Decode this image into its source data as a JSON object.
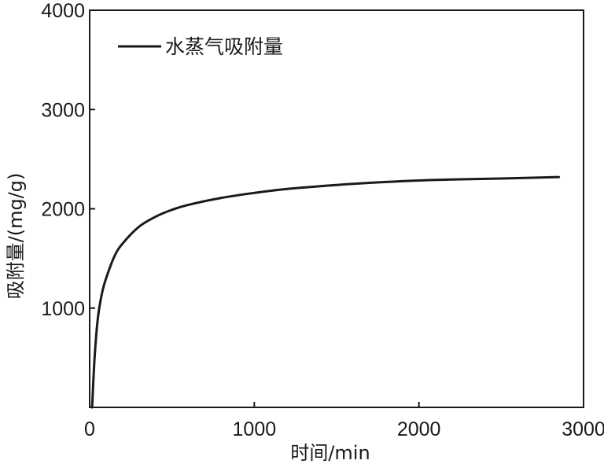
{
  "chart_data": {
    "type": "line",
    "title": "",
    "xlabel": "时间/min",
    "ylabel": "吸附量/(mg/g)",
    "xlim": [
      0,
      3000
    ],
    "ylim": [
      0,
      4000
    ],
    "x_ticks": [
      0,
      1000,
      2000,
      3000
    ],
    "x_tick_labels": [
      "0",
      "1000",
      "2000",
      "3000"
    ],
    "y_ticks": [
      1000,
      2000,
      3000,
      4000
    ],
    "y_tick_labels": [
      "1000",
      "2000",
      "3000",
      "4000"
    ],
    "grid": false,
    "legend_position": "top-left",
    "series": [
      {
        "name": "水蒸气吸附量",
        "color": "#1a1a1a",
        "x": [
          15,
          30,
          50,
          75,
          100,
          150,
          200,
          300,
          400,
          500,
          600,
          800,
          1000,
          1200,
          1500,
          1800,
          2000,
          2200,
          2500,
          2850
        ],
        "y": [
          0,
          500,
          900,
          1150,
          1300,
          1520,
          1650,
          1820,
          1920,
          1990,
          2040,
          2110,
          2160,
          2200,
          2240,
          2270,
          2285,
          2295,
          2305,
          2320
        ]
      }
    ]
  }
}
